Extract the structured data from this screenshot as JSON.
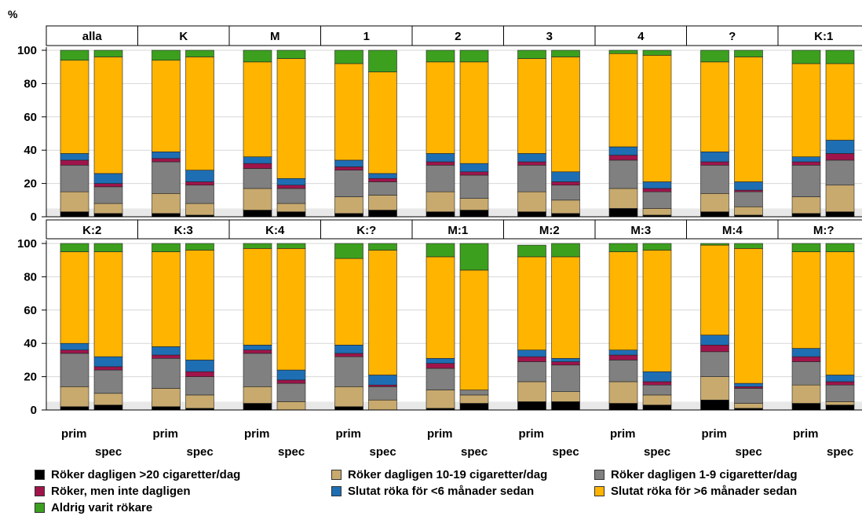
{
  "chart_data": {
    "type": "bar",
    "stacked": true,
    "y_unit_label": "%",
    "ylim": [
      0,
      100
    ],
    "y_ticks": [
      0,
      20,
      40,
      60,
      80,
      100
    ],
    "grid": true,
    "bar_labels": [
      "prim",
      "spec"
    ],
    "series_order": [
      "r20",
      "r1019",
      "r19",
      "rnd",
      "sl6",
      "sl6p",
      "aldrig"
    ],
    "series": [
      {
        "key": "r20",
        "name": "Röker dagligen >20 cigaretter/dag",
        "color": "#000000"
      },
      {
        "key": "r1019",
        "name": "Röker dagligen 10-19 cigaretter/dag",
        "color": "#C8AA6E"
      },
      {
        "key": "r19",
        "name": "Röker dagligen 1-9 cigaretter/dag",
        "color": "#808080"
      },
      {
        "key": "rnd",
        "name": "Röker, men inte dagligen",
        "color": "#A0144B"
      },
      {
        "key": "sl6",
        "name": "Slutat röka för <6 månader sedan",
        "color": "#1E6EB4"
      },
      {
        "key": "sl6p",
        "name": "Slutat röka för >6 månader sedan",
        "color": "#FFB400"
      },
      {
        "key": "aldrig",
        "name": "Aldrig varit rökare",
        "color": "#3CA01E"
      }
    ],
    "panels": [
      {
        "title": "alla",
        "prim": [
          3,
          12,
          16,
          3,
          4,
          56,
          6
        ],
        "spec": [
          2,
          6,
          10,
          2,
          6,
          70,
          4
        ]
      },
      {
        "title": "K",
        "prim": [
          2,
          12,
          19,
          2,
          4,
          55,
          6
        ],
        "spec": [
          1,
          7,
          11,
          2,
          7,
          68,
          4
        ]
      },
      {
        "title": "M",
        "prim": [
          4,
          13,
          12,
          3,
          4,
          57,
          7
        ],
        "spec": [
          3,
          5,
          9,
          2,
          4,
          72,
          5
        ]
      },
      {
        "title": "1",
        "prim": [
          2,
          10,
          16,
          2,
          4,
          58,
          8
        ],
        "spec": [
          4,
          9,
          8,
          2,
          3,
          61,
          13
        ]
      },
      {
        "title": "2",
        "prim": [
          3,
          12,
          16,
          2,
          5,
          55,
          7
        ],
        "spec": [
          4,
          7,
          14,
          2,
          5,
          61,
          7
        ]
      },
      {
        "title": "3",
        "prim": [
          3,
          12,
          16,
          2,
          5,
          57,
          5
        ],
        "spec": [
          2,
          8,
          9,
          2,
          6,
          69,
          4
        ]
      },
      {
        "title": "4",
        "prim": [
          5,
          12,
          17,
          3,
          5,
          56,
          2
        ],
        "spec": [
          1,
          4,
          10,
          2,
          4,
          76,
          3
        ]
      },
      {
        "title": "?",
        "prim": [
          3,
          11,
          17,
          2,
          6,
          54,
          7
        ],
        "spec": [
          1,
          5,
          9,
          1,
          5,
          75,
          4
        ]
      },
      {
        "title": "K:1",
        "prim": [
          2,
          10,
          19,
          2,
          3,
          56,
          8
        ],
        "spec": [
          3,
          16,
          15,
          4,
          8,
          46,
          8
        ]
      },
      {
        "title": "K:2",
        "prim": [
          2,
          12,
          20,
          2,
          4,
          55,
          5
        ],
        "spec": [
          3,
          7,
          14,
          2,
          6,
          63,
          5
        ]
      },
      {
        "title": "K:3",
        "prim": [
          2,
          11,
          18,
          2,
          5,
          57,
          5
        ],
        "spec": [
          1,
          8,
          11,
          3,
          7,
          66,
          4
        ]
      },
      {
        "title": "K:4",
        "prim": [
          4,
          10,
          20,
          2,
          3,
          58,
          3
        ],
        "spec": [
          0,
          5,
          11,
          2,
          6,
          73,
          3
        ]
      },
      {
        "title": "K:?",
        "prim": [
          2,
          12,
          18,
          2,
          5,
          52,
          9
        ],
        "spec": [
          0,
          6,
          8,
          1,
          6,
          75,
          4
        ]
      },
      {
        "title": "M:1",
        "prim": [
          1,
          11,
          13,
          3,
          3,
          61,
          8
        ],
        "spec": [
          4,
          5,
          3,
          0,
          0,
          72,
          16
        ]
      },
      {
        "title": "M:2",
        "prim": [
          5,
          12,
          12,
          3,
          4,
          56,
          7
        ],
        "spec": [
          5,
          6,
          16,
          2,
          2,
          61,
          8
        ]
      },
      {
        "title": "M:3",
        "prim": [
          4,
          13,
          13,
          3,
          3,
          59,
          5
        ],
        "spec": [
          3,
          6,
          6,
          2,
          6,
          73,
          4
        ]
      },
      {
        "title": "M:4",
        "prim": [
          6,
          14,
          15,
          4,
          6,
          54,
          1
        ],
        "spec": [
          1,
          3,
          9,
          1,
          2,
          81,
          3
        ]
      },
      {
        "title": "M:?",
        "prim": [
          4,
          11,
          14,
          3,
          5,
          58,
          5
        ],
        "spec": [
          3,
          2,
          10,
          2,
          4,
          74,
          5
        ]
      }
    ]
  }
}
